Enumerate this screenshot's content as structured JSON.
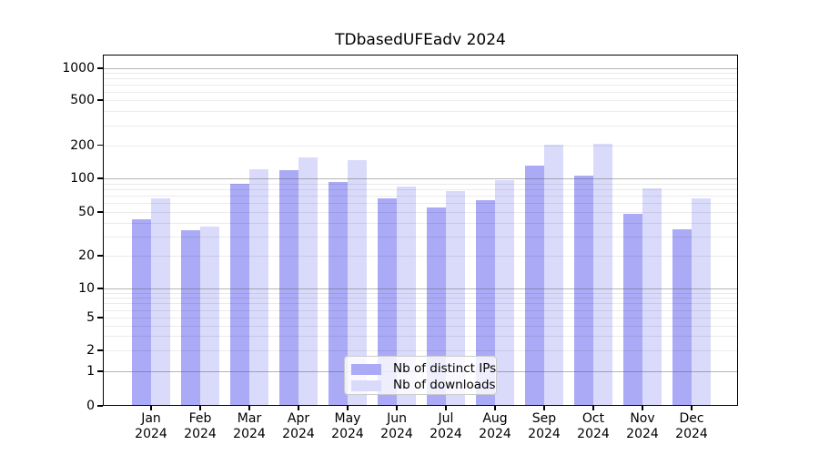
{
  "title": "TDbasedUFEadv 2024",
  "colors": {
    "ips": "#aaaaf6",
    "downloads": "#dadafa",
    "major_grid": "#b9b9b9",
    "minor_grid": "#ececec",
    "axis": "#000000",
    "background": "#ffffff"
  },
  "legend": {
    "items": [
      {
        "label": "Nb of distinct IPs",
        "series": "ips"
      },
      {
        "label": "Nb of downloads",
        "series": "downloads"
      }
    ]
  },
  "y_axis": {
    "ticks": [
      0,
      1,
      2,
      5,
      10,
      20,
      50,
      100,
      200,
      500,
      1000
    ]
  },
  "x_axis": {
    "year": "2024",
    "months": [
      "Jan",
      "Feb",
      "Mar",
      "Apr",
      "May",
      "Jun",
      "Jul",
      "Aug",
      "Sep",
      "Oct",
      "Nov",
      "Dec"
    ]
  },
  "chart_data": {
    "type": "bar",
    "title": "TDbasedUFEadv 2024",
    "categories": [
      "Jan 2024",
      "Feb 2024",
      "Mar 2024",
      "Apr 2024",
      "May 2024",
      "Jun 2024",
      "Jul 2024",
      "Aug 2024",
      "Sep 2024",
      "Oct 2024",
      "Nov 2024",
      "Dec 2024"
    ],
    "series": [
      {
        "name": "Nb of distinct IPs",
        "color": "#aaaaf6",
        "values": [
          43,
          34,
          90,
          118,
          92,
          66,
          55,
          64,
          130,
          105,
          48,
          35
        ]
      },
      {
        "name": "Nb of downloads",
        "color": "#dadafa",
        "values": [
          66,
          37,
          122,
          154,
          147,
          85,
          77,
          97,
          202,
          206,
          82,
          66
        ]
      }
    ],
    "xlabel": "",
    "ylabel": "",
    "ylim": [
      0,
      1000
    ],
    "yticks": [
      0,
      1,
      2,
      5,
      10,
      20,
      50,
      100,
      200,
      500,
      1000
    ],
    "y_scale": "log-like with linear segment below 1",
    "grid": true,
    "legend_position": "lower center"
  }
}
